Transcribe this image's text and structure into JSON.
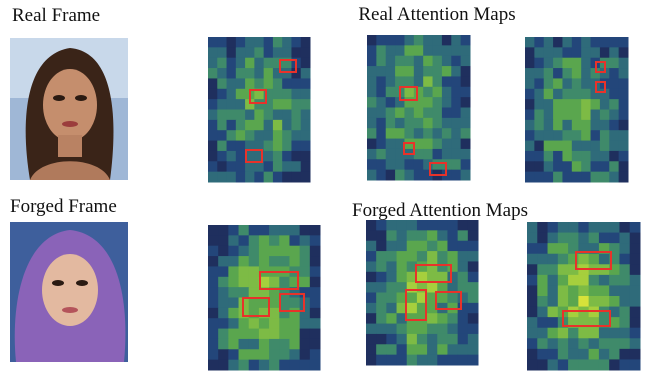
{
  "real": {
    "frame_label": "Real Frame",
    "maps_label": "Real Attention Maps"
  },
  "forged": {
    "frame_label": "Forged Frame",
    "maps_label": "Forged Attention Maps"
  }
}
